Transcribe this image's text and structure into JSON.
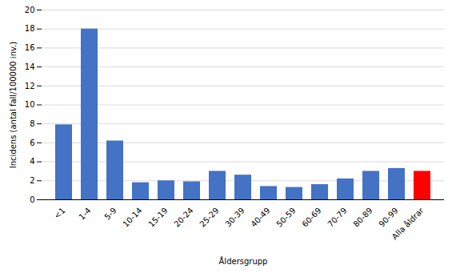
{
  "chart_data": {
    "type": "bar",
    "categories": [
      "<1",
      "1-4",
      "5-9",
      "10-14",
      "15-19",
      "20-24",
      "25-29",
      "30-39",
      "40-49",
      "50-59",
      "60-69",
      "70-79",
      "80-89",
      "90-99",
      "Alla åldrar"
    ],
    "values": [
      7.9,
      18.0,
      6.2,
      1.8,
      2.0,
      1.9,
      3.0,
      2.6,
      1.4,
      1.3,
      1.6,
      2.2,
      3.0,
      3.3,
      3.0
    ],
    "colors": [
      "#4472C4",
      "#4472C4",
      "#4472C4",
      "#4472C4",
      "#4472C4",
      "#4472C4",
      "#4472C4",
      "#4472C4",
      "#4472C4",
      "#4472C4",
      "#4472C4",
      "#4472C4",
      "#4472C4",
      "#4472C4",
      "#FF0000"
    ],
    "xlabel": "Åldersgrupp",
    "ylabel": "Incidens (antal fall/100000 inv.)",
    "ylim": [
      0,
      20
    ],
    "yticks": [
      0,
      2,
      4,
      6,
      8,
      10,
      12,
      14,
      16,
      18,
      20
    ],
    "grid": true
  }
}
